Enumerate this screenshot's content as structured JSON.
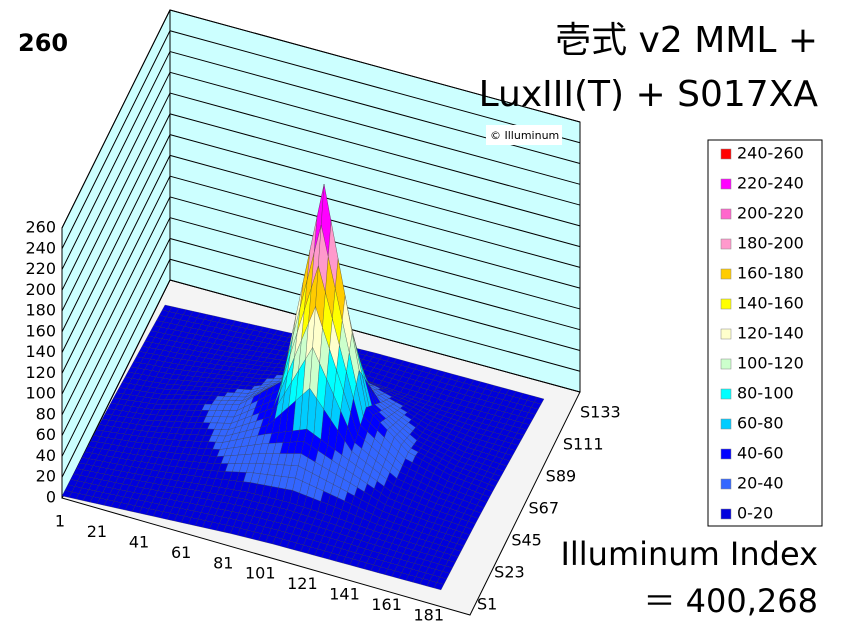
{
  "chart_data": {
    "type": "surface",
    "title": [
      "壱式 v2 MML +",
      "LuxIII(T) + S017XA"
    ],
    "peak_value": 260,
    "watermark": "© Illuminum",
    "index_label": "Illuminum Index",
    "index_value": "＝ 400,268",
    "categories": [
      "1",
      "21",
      "41",
      "61",
      "81",
      "101",
      "121",
      "141",
      "161",
      "181"
    ],
    "series": [
      {
        "name": "S1",
        "values": [
          2,
          3,
          4,
          5,
          6,
          6,
          5,
          4,
          3,
          2
        ]
      },
      {
        "name": "S23",
        "values": [
          3,
          5,
          8,
          12,
          15,
          15,
          12,
          8,
          5,
          3
        ]
      },
      {
        "name": "S45",
        "values": [
          4,
          8,
          14,
          22,
          40,
          55,
          35,
          15,
          8,
          4
        ]
      },
      {
        "name": "S67",
        "values": [
          4,
          8,
          18,
          28,
          60,
          260,
          55,
          22,
          10,
          4
        ]
      },
      {
        "name": "S89",
        "values": [
          3,
          6,
          12,
          18,
          30,
          50,
          30,
          14,
          6,
          3
        ]
      },
      {
        "name": "S111",
        "values": [
          2,
          4,
          6,
          10,
          14,
          12,
          8,
          5,
          3,
          2
        ]
      },
      {
        "name": "S133",
        "values": [
          1,
          2,
          3,
          4,
          5,
          5,
          4,
          3,
          2,
          1
        ]
      }
    ],
    "zlim": [
      0,
      260
    ],
    "zticks": [
      0,
      20,
      40,
      60,
      80,
      100,
      120,
      140,
      160,
      180,
      200,
      220,
      240,
      260
    ],
    "bands": [
      {
        "from": 240,
        "to": 260,
        "label": "240-260",
        "color": "#ff0000"
      },
      {
        "from": 220,
        "to": 240,
        "label": "220-240",
        "color": "#ff00ff"
      },
      {
        "from": 200,
        "to": 220,
        "label": "200-220",
        "color": "#ff66cc"
      },
      {
        "from": 180,
        "to": 200,
        "label": "180-200",
        "color": "#ff99cc"
      },
      {
        "from": 160,
        "to": 180,
        "label": "160-180",
        "color": "#ffcc00"
      },
      {
        "from": 140,
        "to": 160,
        "label": "140-160",
        "color": "#ffff00"
      },
      {
        "from": 120,
        "to": 140,
        "label": "120-140",
        "color": "#ffffcc"
      },
      {
        "from": 100,
        "to": 120,
        "label": "100-120",
        "color": "#ccffcc"
      },
      {
        "from": 80,
        "to": 100,
        "label": "80-100",
        "color": "#00ffff"
      },
      {
        "from": 60,
        "to": 80,
        "label": "60-80",
        "color": "#00ccff"
      },
      {
        "from": 40,
        "to": 60,
        "label": "40-60",
        "color": "#0000ff"
      },
      {
        "from": 20,
        "to": 40,
        "label": "20-40",
        "color": "#3366ff"
      },
      {
        "from": 0,
        "to": 20,
        "label": "0-20",
        "color": "#0000dd"
      }
    ],
    "wall_color": "#ccffff",
    "grid": true
  }
}
